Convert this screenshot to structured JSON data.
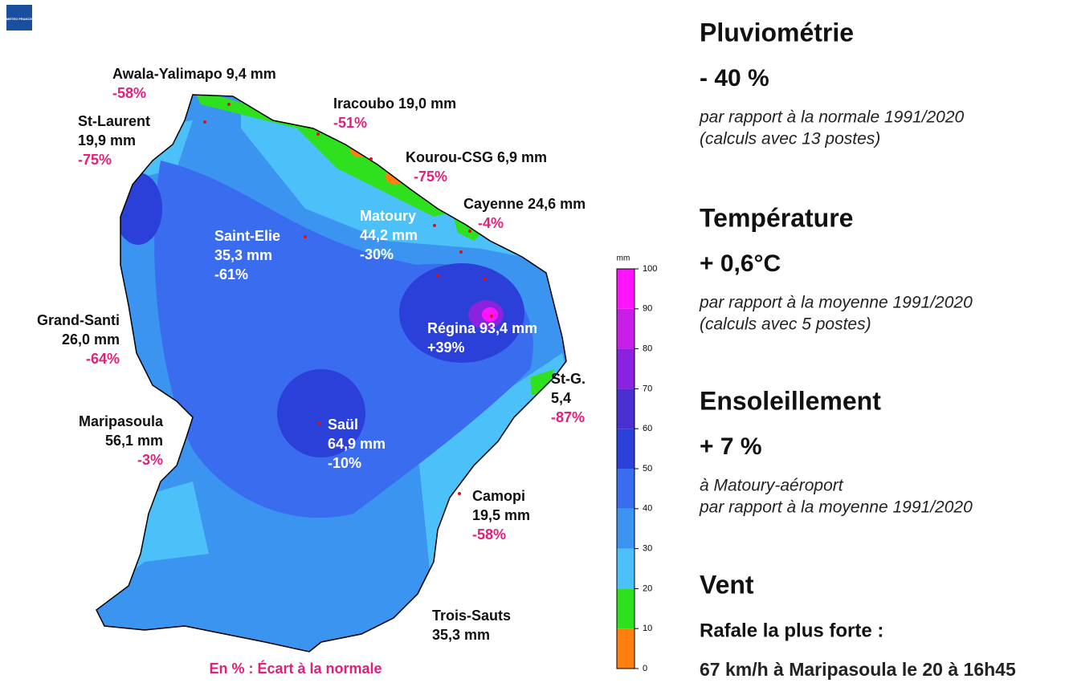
{
  "logo": "METEO FRANCE",
  "stations": [
    {
      "name": "Awala-Yalimapo",
      "value": "9,4 mm",
      "deviation": "-58%"
    },
    {
      "name": "Iracoubo",
      "value": "19,0 mm",
      "deviation": "-51%"
    },
    {
      "name": "St-Laurent",
      "value": "19,9 mm",
      "deviation": "-75%"
    },
    {
      "name": "Kourou-CSG",
      "value": "6,9 mm",
      "deviation": "-75%"
    },
    {
      "name": "Cayenne",
      "value": "24,6 mm",
      "deviation": "-4%"
    },
    {
      "name": "Matoury",
      "value": "44,2 mm",
      "deviation": "-30%"
    },
    {
      "name": "Saint-Elie",
      "value": "35,3 mm",
      "deviation": "-61%"
    },
    {
      "name": "Grand-Santi",
      "value": "26,0 mm",
      "deviation": "-64%"
    },
    {
      "name": "Régina",
      "value": "93,4 mm",
      "deviation": "+39%"
    },
    {
      "name": "St-G.",
      "value": "5,4",
      "deviation": "-87%"
    },
    {
      "name": "Maripasoula",
      "value": "56,1 mm",
      "deviation": "-3%"
    },
    {
      "name": "Saül",
      "value": "64,9 mm",
      "deviation": "-10%"
    },
    {
      "name": "Camopi",
      "value": "19,5 mm",
      "deviation": "-58%"
    },
    {
      "name": "Trois-Sauts",
      "value": "35,3 mm"
    }
  ],
  "footnote": "En % : Écart à la normale",
  "legend": {
    "unit": "mm",
    "ticks": [
      0,
      10,
      20,
      30,
      40,
      50,
      60,
      70,
      80,
      90,
      100
    ],
    "colors": [
      "#ff7f10",
      "#2ee01e",
      "#4cc0f8",
      "#3a94f0",
      "#3a6cf0",
      "#2a40d8",
      "#4a30d0",
      "#8a22e0",
      "#c81ee8",
      "#ff14ff"
    ]
  },
  "panel": [
    {
      "title": "Pluviométrie",
      "value": "- 40 %",
      "notes": [
        "par rapport à la normale 1991/2020",
        "(calculs avec 13 postes)"
      ]
    },
    {
      "title": "Température",
      "value": "+ 0,6°C",
      "notes": [
        "par rapport à la moyenne 1991/2020",
        "(calculs avec 5 postes)"
      ]
    },
    {
      "title": "Ensoleillement",
      "value": "+ 7 %",
      "notes": [
        "à Matoury-aéroport",
        "par rapport à la moyenne 1991/2020"
      ]
    },
    {
      "title": "Vent",
      "value": "Rafale la plus forte :",
      "notes": [
        "67 km/h à Maripasoula le 20 à 16h45"
      ]
    }
  ]
}
